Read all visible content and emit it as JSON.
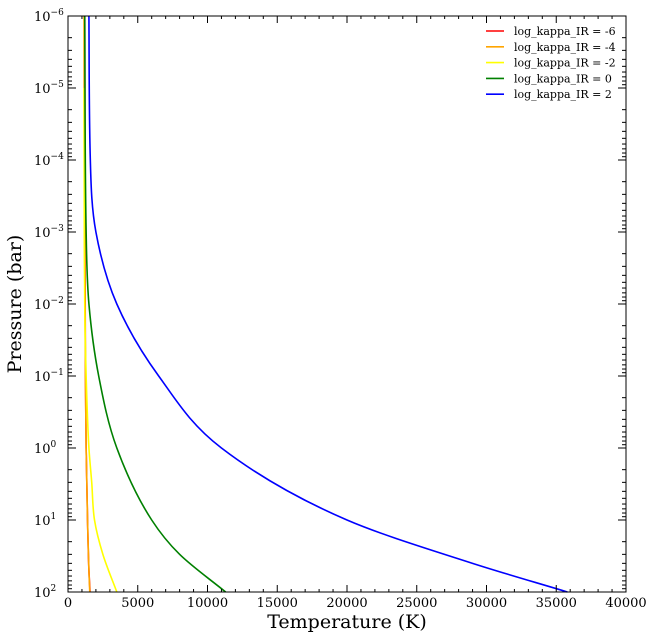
{
  "chart_data": {
    "type": "line",
    "xlabel": "Temperature (K)",
    "ylabel": "Pressure (bar)",
    "xlim": [
      0,
      40000
    ],
    "ylim": [
      100,
      1e-06
    ],
    "yscale": "log",
    "y_inverted": true,
    "grid": false,
    "legend_position": "top-right",
    "x_ticks": [
      0,
      5000,
      10000,
      15000,
      20000,
      25000,
      30000,
      35000,
      40000
    ],
    "x_tick_labels": [
      "0",
      "5000",
      "10000",
      "15000",
      "20000",
      "25000",
      "30000",
      "35000",
      "40000"
    ],
    "y_ticks": [
      {
        "value": 1e-06,
        "base": "10",
        "exp": "−6"
      },
      {
        "value": 1e-05,
        "base": "10",
        "exp": "−5"
      },
      {
        "value": 0.0001,
        "base": "10",
        "exp": "−4"
      },
      {
        "value": 0.001,
        "base": "10",
        "exp": "−3"
      },
      {
        "value": 0.01,
        "base": "10",
        "exp": "−2"
      },
      {
        "value": 0.1,
        "base": "10",
        "exp": "−1"
      },
      {
        "value": 1,
        "base": "10",
        "exp": "0"
      },
      {
        "value": 10,
        "base": "10",
        "exp": "1"
      },
      {
        "value": 100,
        "base": "10",
        "exp": "2"
      }
    ],
    "series": [
      {
        "name": "log_kappa_IR = -6",
        "color": "#ff0000",
        "points": [
          [
            1200,
            1e-06
          ],
          [
            1220,
            0.001
          ],
          [
            1250,
            0.1
          ],
          [
            1300,
            1
          ],
          [
            1400,
            10
          ],
          [
            1500,
            50
          ],
          [
            1580,
            100
          ]
        ]
      },
      {
        "name": "log_kappa_IR = -4",
        "color": "#ffa500",
        "points": [
          [
            1150,
            1e-06
          ],
          [
            1180,
            0.001
          ],
          [
            1250,
            0.1
          ],
          [
            1300,
            1
          ],
          [
            1400,
            10
          ],
          [
            1500,
            50
          ],
          [
            1560,
            100
          ]
        ]
      },
      {
        "name": "log_kappa_IR = -2",
        "color": "#ffff00",
        "points": [
          [
            1150,
            1e-05
          ],
          [
            1170,
            0.001
          ],
          [
            1200,
            0.01
          ],
          [
            1300,
            0.1
          ],
          [
            1500,
            1
          ],
          [
            1700,
            3
          ],
          [
            1900,
            10
          ],
          [
            2500,
            30
          ],
          [
            3500,
            100
          ]
        ]
      },
      {
        "name": "log_kappa_IR = 0",
        "color": "#008000",
        "points": [
          [
            1200,
            1e-06
          ],
          [
            1300,
            0.001
          ],
          [
            1500,
            0.01
          ],
          [
            2200,
            0.1
          ],
          [
            3500,
            1
          ],
          [
            6000,
            10
          ],
          [
            8000,
            30
          ],
          [
            11300,
            100
          ]
        ]
      },
      {
        "name": "log_kappa_IR = 2",
        "color": "#0000ff",
        "points": [
          [
            1500,
            1e-06
          ],
          [
            1600,
            0.0001
          ],
          [
            2000,
            0.001
          ],
          [
            3500,
            0.01
          ],
          [
            6500,
            0.1
          ],
          [
            11000,
            1
          ],
          [
            20000,
            10
          ],
          [
            29000,
            40
          ],
          [
            35800,
            100
          ]
        ]
      }
    ]
  }
}
